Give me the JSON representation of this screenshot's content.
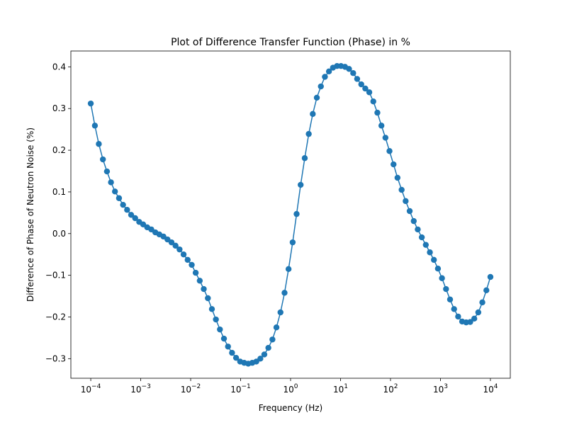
{
  "chart_data": {
    "type": "line",
    "title": "Plot of Difference Transfer Function (Phase) in %",
    "x_label": "Frequency (Hz)",
    "y_label": "Difference of Phase of Neutron Noise (%)",
    "x_scale": "log",
    "color": "#1f77b4",
    "markers": true,
    "grid": false,
    "x": [
      0.0001,
      0.000121,
      0.000145,
      0.000175,
      0.000211,
      0.000254,
      0.000305,
      0.000368,
      0.000443,
      0.000534,
      0.000643,
      0.000774,
      0.000933,
      0.00112,
      0.00135,
      0.00163,
      0.00196,
      0.00236,
      0.00285,
      0.00343,
      0.00413,
      0.00498,
      0.00599,
      0.00722,
      0.0087,
      0.0105,
      0.0126,
      0.0152,
      0.0183,
      0.0221,
      0.0266,
      0.032,
      0.0385,
      0.0464,
      0.0559,
      0.0673,
      0.0811,
      0.0977,
      0.118,
      0.142,
      0.171,
      0.206,
      0.248,
      0.298,
      0.359,
      0.433,
      0.521,
      0.628,
      0.757,
      0.911,
      1.1,
      1.32,
      1.59,
      1.92,
      2.31,
      2.78,
      3.35,
      4.04,
      4.86,
      5.86,
      7.06,
      8.5,
      10.2,
      12.3,
      14.8,
      17.9,
      21.5,
      26,
      31.3,
      37.6,
      45.3,
      54.6,
      65.8,
      79.2,
      95.4,
      115,
      138,
      167,
      201,
      242,
      292,
      351,
      423,
      509,
      614,
      739,
      890,
      1072,
      1292,
      1556,
      1874,
      2257,
      2718,
      3275,
      3944,
      4751,
      5722,
      6893,
      8302,
      10000
    ],
    "values": [
      0.312,
      0.259,
      0.215,
      0.178,
      0.149,
      0.123,
      0.101,
      0.085,
      0.069,
      0.057,
      0.045,
      0.037,
      0.028,
      0.022,
      0.015,
      0.01,
      0.003,
      -0.002,
      -0.007,
      -0.014,
      -0.021,
      -0.029,
      -0.038,
      -0.05,
      -0.063,
      -0.075,
      -0.094,
      -0.113,
      -0.133,
      -0.155,
      -0.181,
      -0.206,
      -0.23,
      -0.252,
      -0.271,
      -0.286,
      -0.298,
      -0.307,
      -0.31,
      -0.312,
      -0.31,
      -0.307,
      -0.3,
      -0.29,
      -0.274,
      -0.254,
      -0.225,
      -0.189,
      -0.142,
      -0.085,
      -0.021,
      0.047,
      0.117,
      0.181,
      0.239,
      0.287,
      0.326,
      0.353,
      0.376,
      0.389,
      0.398,
      0.402,
      0.402,
      0.4,
      0.395,
      0.385,
      0.371,
      0.358,
      0.348,
      0.339,
      0.317,
      0.29,
      0.259,
      0.23,
      0.198,
      0.166,
      0.134,
      0.105,
      0.078,
      0.054,
      0.03,
      0.01,
      -0.009,
      -0.027,
      -0.045,
      -0.063,
      -0.084,
      -0.107,
      -0.133,
      -0.158,
      -0.181,
      -0.199,
      -0.211,
      -0.213,
      -0.212,
      -0.204,
      -0.189,
      -0.165,
      -0.136,
      -0.104
    ],
    "xlim": [
      4e-05,
      25000.0
    ],
    "xticks": [
      {
        "value": 0.0001,
        "label": "10−4"
      },
      {
        "value": 0.001,
        "label": "10−3"
      },
      {
        "value": 0.01,
        "label": "10−2"
      },
      {
        "value": 0.1,
        "label": "10−1"
      },
      {
        "value": 1,
        "label": "100"
      },
      {
        "value": 10,
        "label": "101"
      },
      {
        "value": 100,
        "label": "102"
      },
      {
        "value": 1000,
        "label": "103"
      },
      {
        "value": 10000,
        "label": "104"
      }
    ],
    "ylim": [
      -0.347,
      0.438
    ],
    "yticks": [
      {
        "value": -0.3,
        "label": "−0.3"
      },
      {
        "value": -0.2,
        "label": "−0.2"
      },
      {
        "value": -0.1,
        "label": "−0.1"
      },
      {
        "value": 0,
        "label": "0.0"
      },
      0.1,
      0.2,
      0.3,
      0.4
    ]
  }
}
